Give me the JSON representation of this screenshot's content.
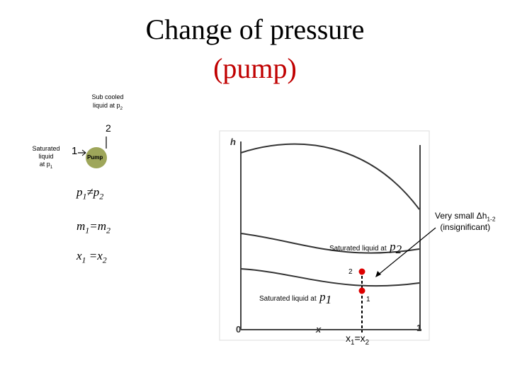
{
  "title": {
    "line1": "Change of pressure",
    "line2": "(pump)"
  },
  "pump_sketch": {
    "outlet_label": {
      "text": "Sub cooled liquid at p",
      "sub": "2"
    },
    "outlet_state": "2",
    "inlet_label": {
      "line1": "Saturated",
      "line2": "liquid",
      "line3": "at p",
      "sub": "1"
    },
    "inlet_state": "1",
    "pump": "Pump"
  },
  "relations": [
    {
      "a": "p",
      "a_sub": "1",
      "op": "≠p",
      "b_sub": "2"
    },
    {
      "a": "m",
      "a_sub": "1",
      "op": "=m",
      "b_sub": "2"
    },
    {
      "a": "x",
      "a_sub": "1",
      "op": " =x",
      "b_sub": "2"
    }
  ],
  "graph": {
    "y_axis": "h",
    "x_axis": "x",
    "x_start": "0",
    "x_end": "1",
    "curve_upper_label": {
      "text": "Saturated liquid at",
      "p": "p",
      "sub": "2"
    },
    "curve_lower_label": {
      "text": "Saturated liquid at",
      "p": "p",
      "sub": "1"
    },
    "point_2": "2",
    "point_1": "1",
    "x_equal": {
      "a": "x",
      "a_sub": "1",
      "op": "=x",
      "b_sub": "2"
    }
  },
  "annotation": {
    "text": "Very small Δh",
    "sub": "1-2",
    "line2": "(insignificant)"
  }
}
